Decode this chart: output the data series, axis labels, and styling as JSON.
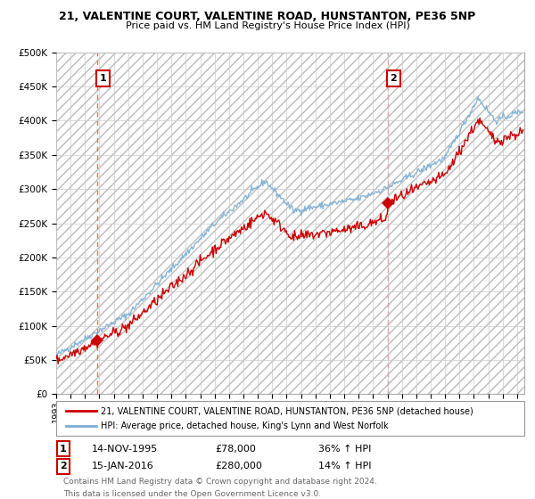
{
  "title": "21, VALENTINE COURT, VALENTINE ROAD, HUNSTANTON, PE36 5NP",
  "subtitle": "Price paid vs. HM Land Registry's House Price Index (HPI)",
  "transaction1_date": 1995.87,
  "transaction1_price": 78000,
  "transaction1_label": "1",
  "transaction1_date_str": "14-NOV-1995",
  "transaction1_price_str": "£78,000",
  "transaction1_hpi_str": "36% ↑ HPI",
  "transaction2_date": 2016.04,
  "transaction2_price": 280000,
  "transaction2_label": "2",
  "transaction2_date_str": "15-JAN-2016",
  "transaction2_price_str": "£280,000",
  "transaction2_hpi_str": "14% ↑ HPI",
  "red_line_color": "#cc0000",
  "blue_line_color": "#7aaed6",
  "marker_color": "#cc0000",
  "vline_color": "#e87070",
  "annotation_box_color": "#cc0000",
  "legend_red_label": "21, VALENTINE COURT, VALENTINE ROAD, HUNSTANTON, PE36 5NP (detached house)",
  "legend_blue_label": "HPI: Average price, detached house, King's Lynn and West Norfolk",
  "footer_line1": "Contains HM Land Registry data © Crown copyright and database right 2024.",
  "footer_line2": "This data is licensed under the Open Government Licence v3.0.",
  "ylim": [
    0,
    500000
  ],
  "xlim": [
    1993,
    2025.5
  ],
  "background_color": "#ffffff",
  "grid_color": "#cccccc"
}
